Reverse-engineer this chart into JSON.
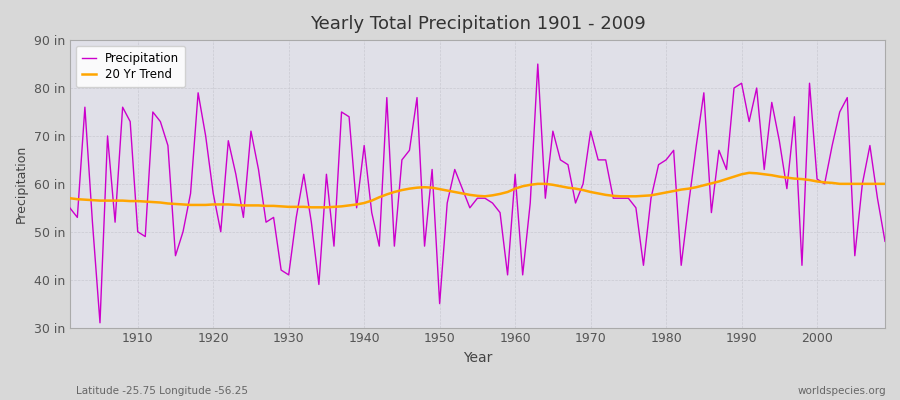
{
  "title": "Yearly Total Precipitation 1901 - 2009",
  "xlabel": "Year",
  "ylabel": "Precipitation",
  "bottom_left": "Latitude -25.75 Longitude -56.25",
  "bottom_right": "worldspecies.org",
  "ylim": [
    30,
    90
  ],
  "yticks": [
    30,
    40,
    50,
    60,
    70,
    80,
    90
  ],
  "ytick_labels": [
    "30 in",
    "40 in",
    "50 in",
    "60 in",
    "70 in",
    "80 in",
    "90 in"
  ],
  "xlim": [
    1901,
    2009
  ],
  "xticks": [
    1910,
    1920,
    1930,
    1940,
    1950,
    1960,
    1970,
    1980,
    1990,
    2000
  ],
  "precip_color": "#cc00cc",
  "trend_color": "#FFA500",
  "fig_bg_color": "#d8d8d8",
  "plot_bg_color": "#e0e0e8",
  "grid_color": "#c8c8d0",
  "years": [
    1901,
    1902,
    1903,
    1904,
    1905,
    1906,
    1907,
    1908,
    1909,
    1910,
    1911,
    1912,
    1913,
    1914,
    1915,
    1916,
    1917,
    1918,
    1919,
    1920,
    1921,
    1922,
    1923,
    1924,
    1925,
    1926,
    1927,
    1928,
    1929,
    1930,
    1931,
    1932,
    1933,
    1934,
    1935,
    1936,
    1937,
    1938,
    1939,
    1940,
    1941,
    1942,
    1943,
    1944,
    1945,
    1946,
    1947,
    1948,
    1949,
    1950,
    1951,
    1952,
    1953,
    1954,
    1955,
    1956,
    1957,
    1958,
    1959,
    1960,
    1961,
    1962,
    1963,
    1964,
    1965,
    1966,
    1967,
    1968,
    1969,
    1970,
    1971,
    1972,
    1973,
    1974,
    1975,
    1976,
    1977,
    1978,
    1979,
    1980,
    1981,
    1982,
    1983,
    1984,
    1985,
    1986,
    1987,
    1988,
    1989,
    1990,
    1991,
    1992,
    1993,
    1994,
    1995,
    1996,
    1997,
    1998,
    1999,
    2000,
    2001,
    2002,
    2003,
    2004,
    2005,
    2006,
    2007,
    2008,
    2009
  ],
  "precipitation": [
    55,
    53,
    76,
    52,
    31,
    70,
    52,
    76,
    73,
    50,
    49,
    75,
    73,
    68,
    45,
    50,
    58,
    79,
    70,
    58,
    50,
    69,
    62,
    53,
    71,
    63,
    52,
    53,
    42,
    41,
    53,
    62,
    52,
    39,
    62,
    47,
    75,
    74,
    55,
    68,
    54,
    47,
    78,
    47,
    65,
    67,
    78,
    47,
    63,
    35,
    56,
    63,
    59,
    55,
    57,
    57,
    56,
    54,
    41,
    62,
    41,
    56,
    85,
    57,
    71,
    65,
    64,
    56,
    60,
    71,
    65,
    65,
    57,
    57,
    57,
    55,
    43,
    57,
    64,
    65,
    67,
    43,
    56,
    68,
    79,
    54,
    67,
    63,
    80,
    81,
    73,
    80,
    63,
    77,
    69,
    59,
    74,
    43,
    81,
    61,
    60,
    68,
    75,
    78,
    45,
    60,
    68,
    57,
    48
  ],
  "trend": [
    57.0,
    56.8,
    56.7,
    56.6,
    56.5,
    56.5,
    56.5,
    56.5,
    56.4,
    56.4,
    56.3,
    56.2,
    56.1,
    55.9,
    55.8,
    55.7,
    55.6,
    55.6,
    55.6,
    55.7,
    55.7,
    55.7,
    55.6,
    55.5,
    55.5,
    55.5,
    55.4,
    55.4,
    55.3,
    55.2,
    55.2,
    55.2,
    55.1,
    55.1,
    55.1,
    55.2,
    55.3,
    55.5,
    55.7,
    56.0,
    56.5,
    57.2,
    57.8,
    58.3,
    58.7,
    59.0,
    59.2,
    59.3,
    59.2,
    58.9,
    58.6,
    58.3,
    58.0,
    57.7,
    57.5,
    57.4,
    57.6,
    57.9,
    58.3,
    59.0,
    59.5,
    59.8,
    60.0,
    60.0,
    59.8,
    59.5,
    59.2,
    59.0,
    58.7,
    58.3,
    58.0,
    57.7,
    57.5,
    57.4,
    57.4,
    57.4,
    57.5,
    57.6,
    57.9,
    58.2,
    58.5,
    58.8,
    59.0,
    59.3,
    59.7,
    60.1,
    60.5,
    61.0,
    61.5,
    62.0,
    62.3,
    62.2,
    62.0,
    61.8,
    61.5,
    61.3,
    61.1,
    61.0,
    60.8,
    60.5,
    60.3,
    60.2,
    60.0,
    60.0,
    60.0,
    60.0,
    60.0,
    60.0,
    60.0
  ]
}
